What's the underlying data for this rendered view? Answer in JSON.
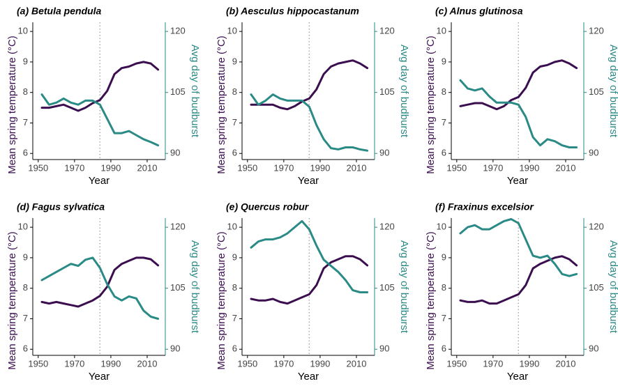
{
  "chart_data": [
    {
      "type": "line",
      "title": "(a) Betula pendula",
      "xlabel": "Year",
      "ylabel": "Mean spring temperature (°C)",
      "y2label": "Avg day of budburst",
      "x": [
        1952,
        1956,
        1960,
        1964,
        1968,
        1972,
        1976,
        1980,
        1984,
        1988,
        1992,
        1996,
        2000,
        2004,
        2008,
        2012,
        2016
      ],
      "xlim": [
        1947,
        2020
      ],
      "xticks": [
        1950,
        1970,
        1990,
        2010
      ],
      "ylim": [
        5.8,
        10.3
      ],
      "yticks": [
        6,
        7,
        8,
        9,
        10
      ],
      "y2lim": [
        88.5,
        122.25
      ],
      "y2ticks": [
        90,
        105,
        120
      ],
      "vline": 1984,
      "series": [
        {
          "name": "Mean spring temperature",
          "color": "#3b0f4f",
          "values": [
            7.5,
            7.5,
            7.55,
            7.6,
            7.5,
            7.4,
            7.5,
            7.65,
            7.75,
            8.05,
            8.6,
            8.8,
            8.85,
            8.95,
            9.0,
            8.95,
            8.75
          ]
        },
        {
          "name": "Avg day of budburst",
          "color": "#2a8a85",
          "axis": "y2",
          "values": [
            104.5,
            102,
            102.5,
            103.5,
            102.5,
            102,
            103,
            103,
            102,
            98.5,
            95,
            95,
            95.5,
            94.5,
            93.5,
            92.8,
            92
          ]
        }
      ]
    },
    {
      "type": "line",
      "title": "(b) Aesculus hippocastanum",
      "xlabel": "Year",
      "ylabel": "Mean spring temperature (°C)",
      "y2label": "Avg day of budburst",
      "x": [
        1952,
        1956,
        1960,
        1964,
        1968,
        1972,
        1976,
        1980,
        1984,
        1988,
        1992,
        1996,
        2000,
        2004,
        2008,
        2012,
        2016
      ],
      "xlim": [
        1947,
        2020
      ],
      "xticks": [
        1950,
        1970,
        1990,
        2010
      ],
      "ylim": [
        5.8,
        10.3
      ],
      "yticks": [
        6,
        7,
        8,
        9,
        10
      ],
      "y2lim": [
        88.5,
        122.25
      ],
      "y2ticks": [
        90,
        105,
        120
      ],
      "vline": 1984,
      "series": [
        {
          "name": "Mean spring temperature",
          "color": "#3b0f4f",
          "values": [
            7.6,
            7.6,
            7.6,
            7.6,
            7.5,
            7.45,
            7.55,
            7.7,
            7.8,
            8.1,
            8.6,
            8.85,
            8.95,
            9.0,
            9.05,
            8.95,
            8.8
          ]
        },
        {
          "name": "Avg day of budburst",
          "color": "#2a8a85",
          "axis": "y2",
          "values": [
            104.5,
            102,
            103,
            104.5,
            103.5,
            103,
            103,
            103,
            101.5,
            97,
            93.5,
            91.3,
            91,
            91.5,
            91.5,
            91,
            90.7
          ]
        }
      ]
    },
    {
      "type": "line",
      "title": "(c) Alnus glutinosa",
      "xlabel": "Year",
      "ylabel": "Mean spring temperature (°C)",
      "y2label": "Avg day of budburst",
      "x": [
        1952,
        1956,
        1960,
        1964,
        1968,
        1972,
        1976,
        1980,
        1984,
        1988,
        1992,
        1996,
        2000,
        2004,
        2008,
        2012,
        2016
      ],
      "xlim": [
        1947,
        2020
      ],
      "xticks": [
        1950,
        1970,
        1990,
        2010
      ],
      "ylim": [
        5.8,
        10.3
      ],
      "yticks": [
        6,
        7,
        8,
        9,
        10
      ],
      "y2lim": [
        88.5,
        122.25
      ],
      "y2ticks": [
        90,
        105,
        120
      ],
      "vline": 1984,
      "series": [
        {
          "name": "Mean spring temperature",
          "color": "#3b0f4f",
          "values": [
            7.55,
            7.6,
            7.65,
            7.65,
            7.55,
            7.45,
            7.55,
            7.75,
            7.85,
            8.15,
            8.65,
            8.85,
            8.9,
            9.0,
            9.05,
            8.95,
            8.8
          ]
        },
        {
          "name": "Avg day of budburst",
          "color": "#2a8a85",
          "axis": "y2",
          "values": [
            108,
            106,
            105.5,
            106,
            104,
            102.5,
            102.5,
            102.5,
            102,
            99,
            94,
            92,
            93.5,
            93,
            92,
            91.5,
            91.5
          ]
        }
      ]
    },
    {
      "type": "line",
      "title": "(d) Fagus sylvatica",
      "xlabel": "Year",
      "ylabel": "Mean spring temperature (°C)",
      "y2label": "Avg day of budburst",
      "x": [
        1952,
        1956,
        1960,
        1964,
        1968,
        1972,
        1976,
        1980,
        1984,
        1988,
        1992,
        1996,
        2000,
        2004,
        2008,
        2012,
        2016
      ],
      "xlim": [
        1947,
        2020
      ],
      "xticks": [
        1950,
        1970,
        1990,
        2010
      ],
      "ylim": [
        5.8,
        10.3
      ],
      "yticks": [
        6,
        7,
        8,
        9,
        10
      ],
      "y2lim": [
        88.5,
        122.25
      ],
      "y2ticks": [
        90,
        105,
        120
      ],
      "vline": 1984,
      "series": [
        {
          "name": "Mean spring temperature",
          "color": "#3b0f4f",
          "values": [
            7.55,
            7.5,
            7.55,
            7.5,
            7.45,
            7.4,
            7.5,
            7.6,
            7.75,
            8.05,
            8.6,
            8.8,
            8.9,
            9.0,
            9.0,
            8.95,
            8.75
          ]
        },
        {
          "name": "Avg day of budburst",
          "color": "#2a8a85",
          "axis": "y2",
          "values": [
            107,
            108,
            109,
            110,
            111,
            110.5,
            112,
            112.5,
            110,
            106,
            103,
            102,
            103,
            102.5,
            99.5,
            98,
            97.5
          ]
        }
      ]
    },
    {
      "type": "line",
      "title": "(e) Quercus robur",
      "xlabel": "Year",
      "ylabel": "Mean spring temperature (°C)",
      "y2label": "Avg day of budburst",
      "x": [
        1952,
        1956,
        1960,
        1964,
        1968,
        1972,
        1976,
        1980,
        1984,
        1988,
        1992,
        1996,
        2000,
        2004,
        2008,
        2012,
        2016
      ],
      "xlim": [
        1947,
        2020
      ],
      "xticks": [
        1950,
        1970,
        1990,
        2010
      ],
      "ylim": [
        5.8,
        10.3
      ],
      "yticks": [
        6,
        7,
        8,
        9,
        10
      ],
      "y2lim": [
        88.5,
        122.25
      ],
      "y2ticks": [
        90,
        105,
        120
      ],
      "vline": 1984,
      "series": [
        {
          "name": "Mean spring temperature",
          "color": "#3b0f4f",
          "values": [
            7.65,
            7.6,
            7.6,
            7.65,
            7.55,
            7.5,
            7.6,
            7.7,
            7.8,
            8.1,
            8.65,
            8.85,
            8.95,
            9.05,
            9.05,
            8.95,
            8.75
          ]
        },
        {
          "name": "Avg day of budburst",
          "color": "#2a8a85",
          "axis": "y2",
          "values": [
            115,
            116.5,
            117,
            117,
            117.5,
            118.5,
            120,
            121.5,
            119.5,
            115.5,
            112,
            110.5,
            109,
            107,
            104.5,
            104,
            104
          ]
        }
      ]
    },
    {
      "type": "line",
      "title": "(f) Fraxinus excelsior",
      "xlabel": "Year",
      "ylabel": "Mean spring temperature (°C)",
      "y2label": "Avg day of budburst",
      "x": [
        1952,
        1956,
        1960,
        1964,
        1968,
        1972,
        1976,
        1980,
        1984,
        1988,
        1992,
        1996,
        2000,
        2004,
        2008,
        2012,
        2016
      ],
      "xlim": [
        1947,
        2020
      ],
      "xticks": [
        1950,
        1970,
        1990,
        2010
      ],
      "ylim": [
        5.8,
        10.3
      ],
      "yticks": [
        6,
        7,
        8,
        9,
        10
      ],
      "y2lim": [
        88.5,
        122.25
      ],
      "y2ticks": [
        90,
        105,
        120
      ],
      "vline": 1984,
      "series": [
        {
          "name": "Mean spring temperature",
          "color": "#3b0f4f",
          "values": [
            7.6,
            7.55,
            7.55,
            7.6,
            7.5,
            7.5,
            7.6,
            7.7,
            7.8,
            8.1,
            8.65,
            8.8,
            8.9,
            9.0,
            9.05,
            8.95,
            8.75
          ]
        },
        {
          "name": "Avg day of budburst",
          "color": "#2a8a85",
          "axis": "y2",
          "values": [
            118.5,
            120,
            120.5,
            119.5,
            119.5,
            120.5,
            121.5,
            122,
            121,
            117,
            113,
            112.5,
            113,
            111,
            108.5,
            108,
            108.5
          ]
        }
      ]
    }
  ]
}
